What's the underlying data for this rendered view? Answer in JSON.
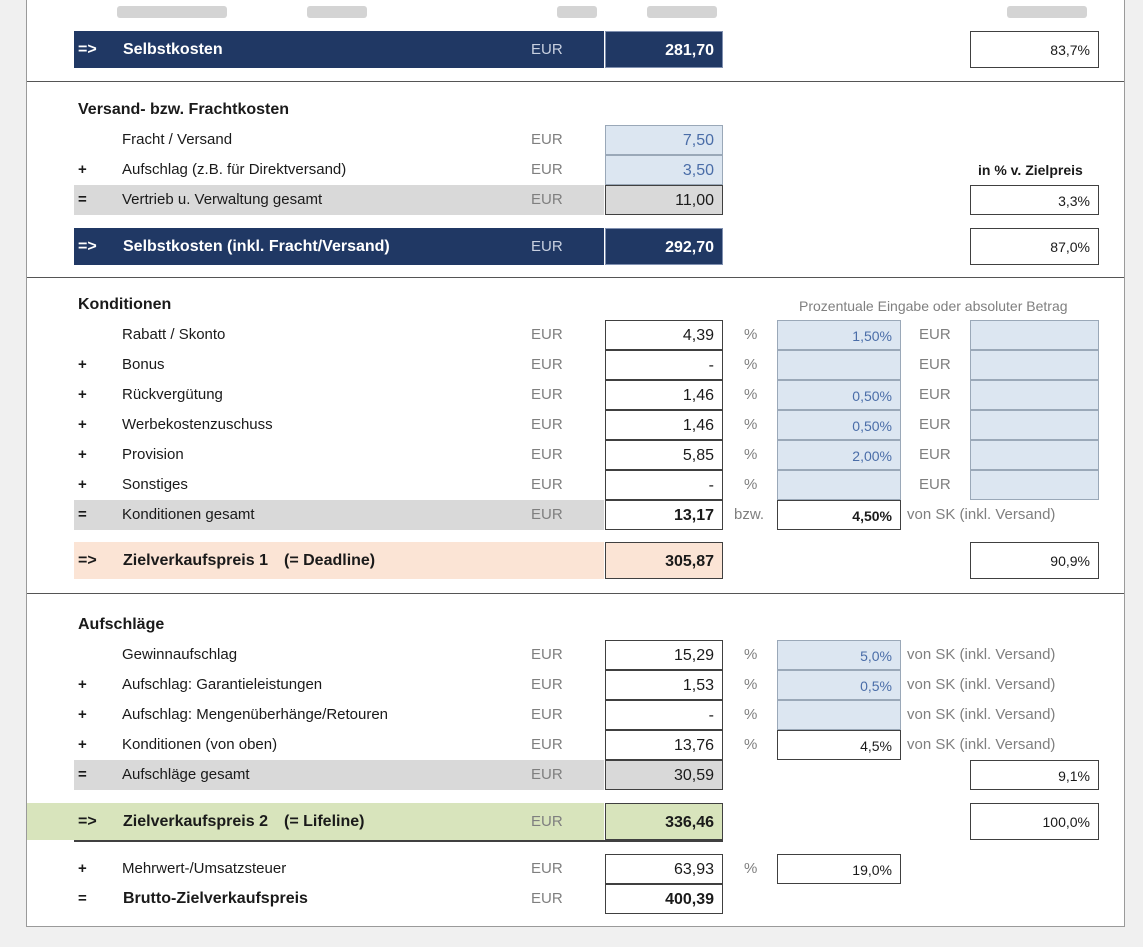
{
  "unit": "EUR",
  "pct_sign": "%",
  "sk": {
    "arrow": "=>",
    "label": "Selbstkosten",
    "unit": "EUR",
    "value": "281,70",
    "pct": "83,7%"
  },
  "versand": {
    "title": "Versand- bzw. Frachtkosten",
    "pct_header": "in % v. Zielpreis",
    "rows": [
      {
        "sign": "",
        "label": "Fracht / Versand",
        "unit": "EUR",
        "value": "7,50"
      },
      {
        "sign": "+",
        "label": "Aufschlag (z.B. für Direktversand)",
        "unit": "EUR",
        "value": "3,50"
      }
    ],
    "total": {
      "sign": "=",
      "label": "Vertrieb u. Verwaltung gesamt",
      "unit": "EUR",
      "value": "11,00",
      "pct": "3,3%"
    }
  },
  "sk2": {
    "arrow": "=>",
    "label": "Selbstkosten (inkl. Fracht/Versand)",
    "unit": "EUR",
    "value": "292,70",
    "pct": "87,0%"
  },
  "konditionen": {
    "title": "Konditionen",
    "hint": "Prozentuale Eingabe oder absoluter Betrag",
    "rows": [
      {
        "sign": "",
        "label": "Rabatt / Skonto",
        "unit": "EUR",
        "value": "4,39",
        "pct_unit": "%",
        "pct": "1,50%",
        "eur_unit": "EUR",
        "eur": ""
      },
      {
        "sign": "+",
        "label": "Bonus",
        "unit": "EUR",
        "value": "-",
        "pct_unit": "%",
        "pct": "",
        "eur_unit": "EUR",
        "eur": ""
      },
      {
        "sign": "+",
        "label": "Rückvergütung",
        "unit": "EUR",
        "value": "1,46",
        "pct_unit": "%",
        "pct": "0,50%",
        "eur_unit": "EUR",
        "eur": ""
      },
      {
        "sign": "+",
        "label": "Werbekostenzuschuss",
        "unit": "EUR",
        "value": "1,46",
        "pct_unit": "%",
        "pct": "0,50%",
        "eur_unit": "EUR",
        "eur": ""
      },
      {
        "sign": "+",
        "label": "Provision",
        "unit": "EUR",
        "value": "5,85",
        "pct_unit": "%",
        "pct": "2,00%",
        "eur_unit": "EUR",
        "eur": ""
      },
      {
        "sign": "+",
        "label": "Sonstiges",
        "unit": "EUR",
        "value": "-",
        "pct_unit": "%",
        "pct": "",
        "eur_unit": "EUR",
        "eur": ""
      }
    ],
    "total": {
      "sign": "=",
      "label": "Konditionen gesamt",
      "unit": "EUR",
      "value": "13,17",
      "bzw": "bzw.",
      "pct": "4,50%",
      "note": "von SK (inkl. Versand)"
    }
  },
  "zvp1": {
    "arrow": "=>",
    "label": "Zielverkaufspreis 1",
    "tag": "(= Deadline)",
    "value": "305,87",
    "pct": "90,9%"
  },
  "aufschlaege": {
    "title": "Aufschläge",
    "rows": [
      {
        "sign": "",
        "label": "Gewinnaufschlag",
        "unit": "EUR",
        "value": "15,29",
        "pct_unit": "%",
        "pct": "5,0%",
        "note": "von SK (inkl. Versand)"
      },
      {
        "sign": "+",
        "label": "Aufschlag: Garantieleistungen",
        "unit": "EUR",
        "value": "1,53",
        "pct_unit": "%",
        "pct": "0,5%",
        "note": "von SK (inkl. Versand)"
      },
      {
        "sign": "+",
        "label": "Aufschlag: Mengenüberhänge/Retouren",
        "unit": "EUR",
        "value": "-",
        "pct_unit": "%",
        "pct": "",
        "note": "von SK (inkl. Versand)"
      },
      {
        "sign": "+",
        "label": "Konditionen (von oben)",
        "unit": "EUR",
        "value": "13,76",
        "pct_unit": "%",
        "pct": "4,5%",
        "note": "von SK (inkl. Versand)"
      }
    ],
    "total": {
      "sign": "=",
      "label": "Aufschläge gesamt",
      "unit": "EUR",
      "value": "30,59",
      "pct": "9,1%"
    }
  },
  "zvp2": {
    "arrow": "=>",
    "label": "Zielverkaufspreis 2",
    "tag": "(= Lifeline)",
    "unit": "EUR",
    "value": "336,46",
    "pct": "100,0%"
  },
  "mwst": {
    "sign": "+",
    "label": "Mehrwert-/Umsatzsteuer",
    "unit": "EUR",
    "value": "63,93",
    "pct_unit": "%",
    "pct": "19,0%"
  },
  "brutto": {
    "sign": "=",
    "label": "Brutto-Zielverkaufspreis",
    "unit": "EUR",
    "value": "400,39"
  }
}
